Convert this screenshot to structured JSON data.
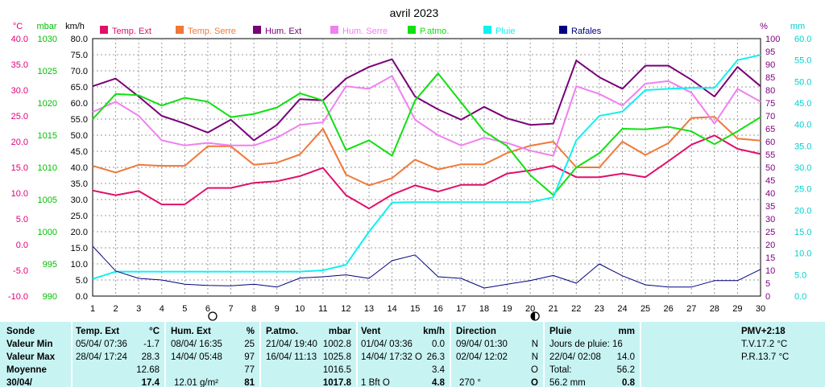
{
  "chart_data": {
    "type": "line",
    "title": "avril 2023",
    "x": [
      1,
      2,
      3,
      4,
      5,
      6,
      7,
      8,
      9,
      10,
      11,
      12,
      13,
      14,
      15,
      16,
      17,
      18,
      19,
      20,
      21,
      22,
      23,
      24,
      25,
      26,
      27,
      28,
      29,
      30
    ],
    "axes": {
      "temp": {
        "unit": "°C",
        "range": [
          -10,
          40
        ],
        "color": "#e0007a"
      },
      "pressure": {
        "unit": "mbar",
        "range": [
          990,
          1030
        ],
        "color": "#00c000"
      },
      "wind": {
        "unit": "km/h",
        "range": [
          0,
          80
        ],
        "color": "#000000"
      },
      "humidity": {
        "unit": "%",
        "range": [
          0,
          100
        ],
        "color": "#800080"
      },
      "rain": {
        "unit": "mm",
        "range": [
          0,
          60
        ],
        "color": "#00d0d0"
      }
    },
    "grid": true,
    "series": [
      {
        "name": "Temp. Ext",
        "axis": "temp",
        "color": "#e0106a",
        "values": [
          10.5,
          9.6,
          10.4,
          7.8,
          7.8,
          11.0,
          11.0,
          12.0,
          12.3,
          13.3,
          14.9,
          9.6,
          7.0,
          9.7,
          11.5,
          10.3,
          11.6,
          11.6,
          13.8,
          14.4,
          15.3,
          13.1,
          13.1,
          13.8,
          13.1,
          16.2,
          19.4,
          21.2,
          18.6,
          17.6
        ]
      },
      {
        "name": "Temp. Serre",
        "axis": "temp",
        "color": "#f07838",
        "values": [
          15.3,
          14.0,
          15.5,
          15.3,
          15.3,
          19.1,
          19.1,
          15.5,
          15.9,
          17.5,
          22.5,
          13.6,
          11.5,
          12.9,
          16.5,
          14.6,
          15.6,
          15.6,
          17.8,
          19.2,
          20.0,
          15.0,
          15.0,
          20.0,
          17.4,
          19.7,
          24.6,
          24.8,
          20.6,
          20.2
        ]
      },
      {
        "name": "Hum. Ext",
        "axis": "humidity",
        "color": "#780078",
        "values": [
          81.5,
          84.5,
          77.5,
          70.0,
          67.0,
          63.5,
          68.5,
          60.5,
          66.5,
          76.5,
          76.0,
          84.5,
          89.0,
          92.0,
          77.5,
          72.5,
          68.5,
          73.5,
          69.0,
          66.5,
          67.0,
          91.5,
          85.0,
          80.5,
          89.5,
          89.5,
          84.0,
          77.5,
          89.0,
          81.5
        ]
      },
      {
        "name": "Hum. Serre",
        "axis": "humidity",
        "color": "#f080f0",
        "values": [
          71.5,
          75.5,
          70.0,
          60.5,
          58.5,
          59.5,
          58.5,
          58.5,
          61.5,
          66.5,
          67.5,
          81.5,
          80.5,
          85.5,
          68.5,
          62.5,
          58.5,
          61.5,
          59.5,
          56.5,
          54.5,
          81.5,
          78.5,
          74.0,
          82.5,
          83.5,
          79.0,
          67.0,
          80.5,
          75.5
        ]
      },
      {
        "name": "P.atmo.",
        "axis": "pressure",
        "color": "#10e010",
        "values": [
          1017.5,
          1021.4,
          1021.2,
          1019.6,
          1020.8,
          1020.2,
          1017.8,
          1018.3,
          1019.3,
          1021.5,
          1020.4,
          1012.7,
          1014.2,
          1011.8,
          1020.4,
          1024.6,
          1020.1,
          1015.6,
          1013.3,
          1008.8,
          1005.7,
          1010.0,
          1012.2,
          1016.0,
          1015.9,
          1016.3,
          1015.6,
          1013.6,
          1015.6,
          1017.8
        ]
      },
      {
        "name": "Pluie",
        "axis": "rain",
        "color": "#10f0f0",
        "values": [
          4.0,
          5.7,
          5.7,
          5.7,
          5.7,
          5.7,
          5.7,
          5.7,
          5.7,
          5.7,
          6.0,
          7.3,
          15.0,
          21.8,
          21.9,
          21.9,
          21.9,
          21.9,
          21.9,
          21.9,
          23.0,
          36.3,
          42.0,
          43.0,
          48.0,
          48.3,
          48.5,
          48.5,
          55.0,
          56.2
        ]
      },
      {
        "name": "Rafales",
        "axis": "wind",
        "color": "#000080",
        "values": [
          15.5,
          7.8,
          5.5,
          5.0,
          3.7,
          3.3,
          3.2,
          3.7,
          2.8,
          5.6,
          6.0,
          6.6,
          5.5,
          11.0,
          12.8,
          6.0,
          5.5,
          2.5,
          3.7,
          4.8,
          6.4,
          4.0,
          10.0,
          6.3,
          3.5,
          2.8,
          2.8,
          4.8,
          4.8,
          8.3
        ]
      }
    ],
    "moon_phases": [
      {
        "day": 6,
        "phase": "full"
      },
      {
        "day": 20,
        "phase": "new"
      }
    ]
  },
  "stats": {
    "sonde": {
      "title": "Sonde",
      "min": "Valeur Min",
      "max": "Valeur Max",
      "avg": "Moyenne",
      "last": "30/04/"
    },
    "temp": {
      "title": "Temp. Ext",
      "unit": "°C",
      "min_time": "05/04/  07:36",
      "min_val": "-1.7",
      "max_time": "28/04/  17:24",
      "max_val": "28.3",
      "avg": "12.68",
      "last": "17.4"
    },
    "hum": {
      "title": "Hum. Ext",
      "unit": "%",
      "min_time": "08/04/  16:35",
      "min_val": "25",
      "max_time": "14/04/  05:48",
      "max_val": "97",
      "avg": "77",
      "last_abs": "12.01 g/m²",
      "last": "81"
    },
    "patmo": {
      "title": "P.atmo.",
      "unit": "mbar",
      "min_time": "21/04/  19:40",
      "min_val": "1002.8",
      "max_time": "16/04/  11:13",
      "max_val": "1025.8",
      "avg": "1016.5",
      "last": "1017.8"
    },
    "vent": {
      "title": "Vent",
      "unit": "km/h",
      "min_time": "01/04/  03:36",
      "min_val": "0.0",
      "max_time": "14/04/  17:32",
      "max_dir": "O",
      "max_val": "26.3",
      "avg": "3.4",
      "last_bft": "1 Bft O",
      "last": "4.8"
    },
    "direction": {
      "title": "Direction",
      "min_time": "09/04/  01:30",
      "min_dir": "N",
      "max_time": "02/04/  12:02",
      "max_dir": "N",
      "avg": "O",
      "last_deg": "270 °",
      "last": "O"
    },
    "pluie": {
      "title": "Pluie",
      "unit": "mm",
      "days": "Jours de pluie: 16",
      "max_time": "22/04/  02:08",
      "max_val": "14.0",
      "total_label": "Total:",
      "total": "56.2",
      "last_mm": "56.2 mm",
      "last": "0.8"
    },
    "pmv": {
      "title": "PMV+2:18",
      "tv": "T.V.17.2 °C",
      "pr": "P.R.13.7 °C"
    }
  }
}
